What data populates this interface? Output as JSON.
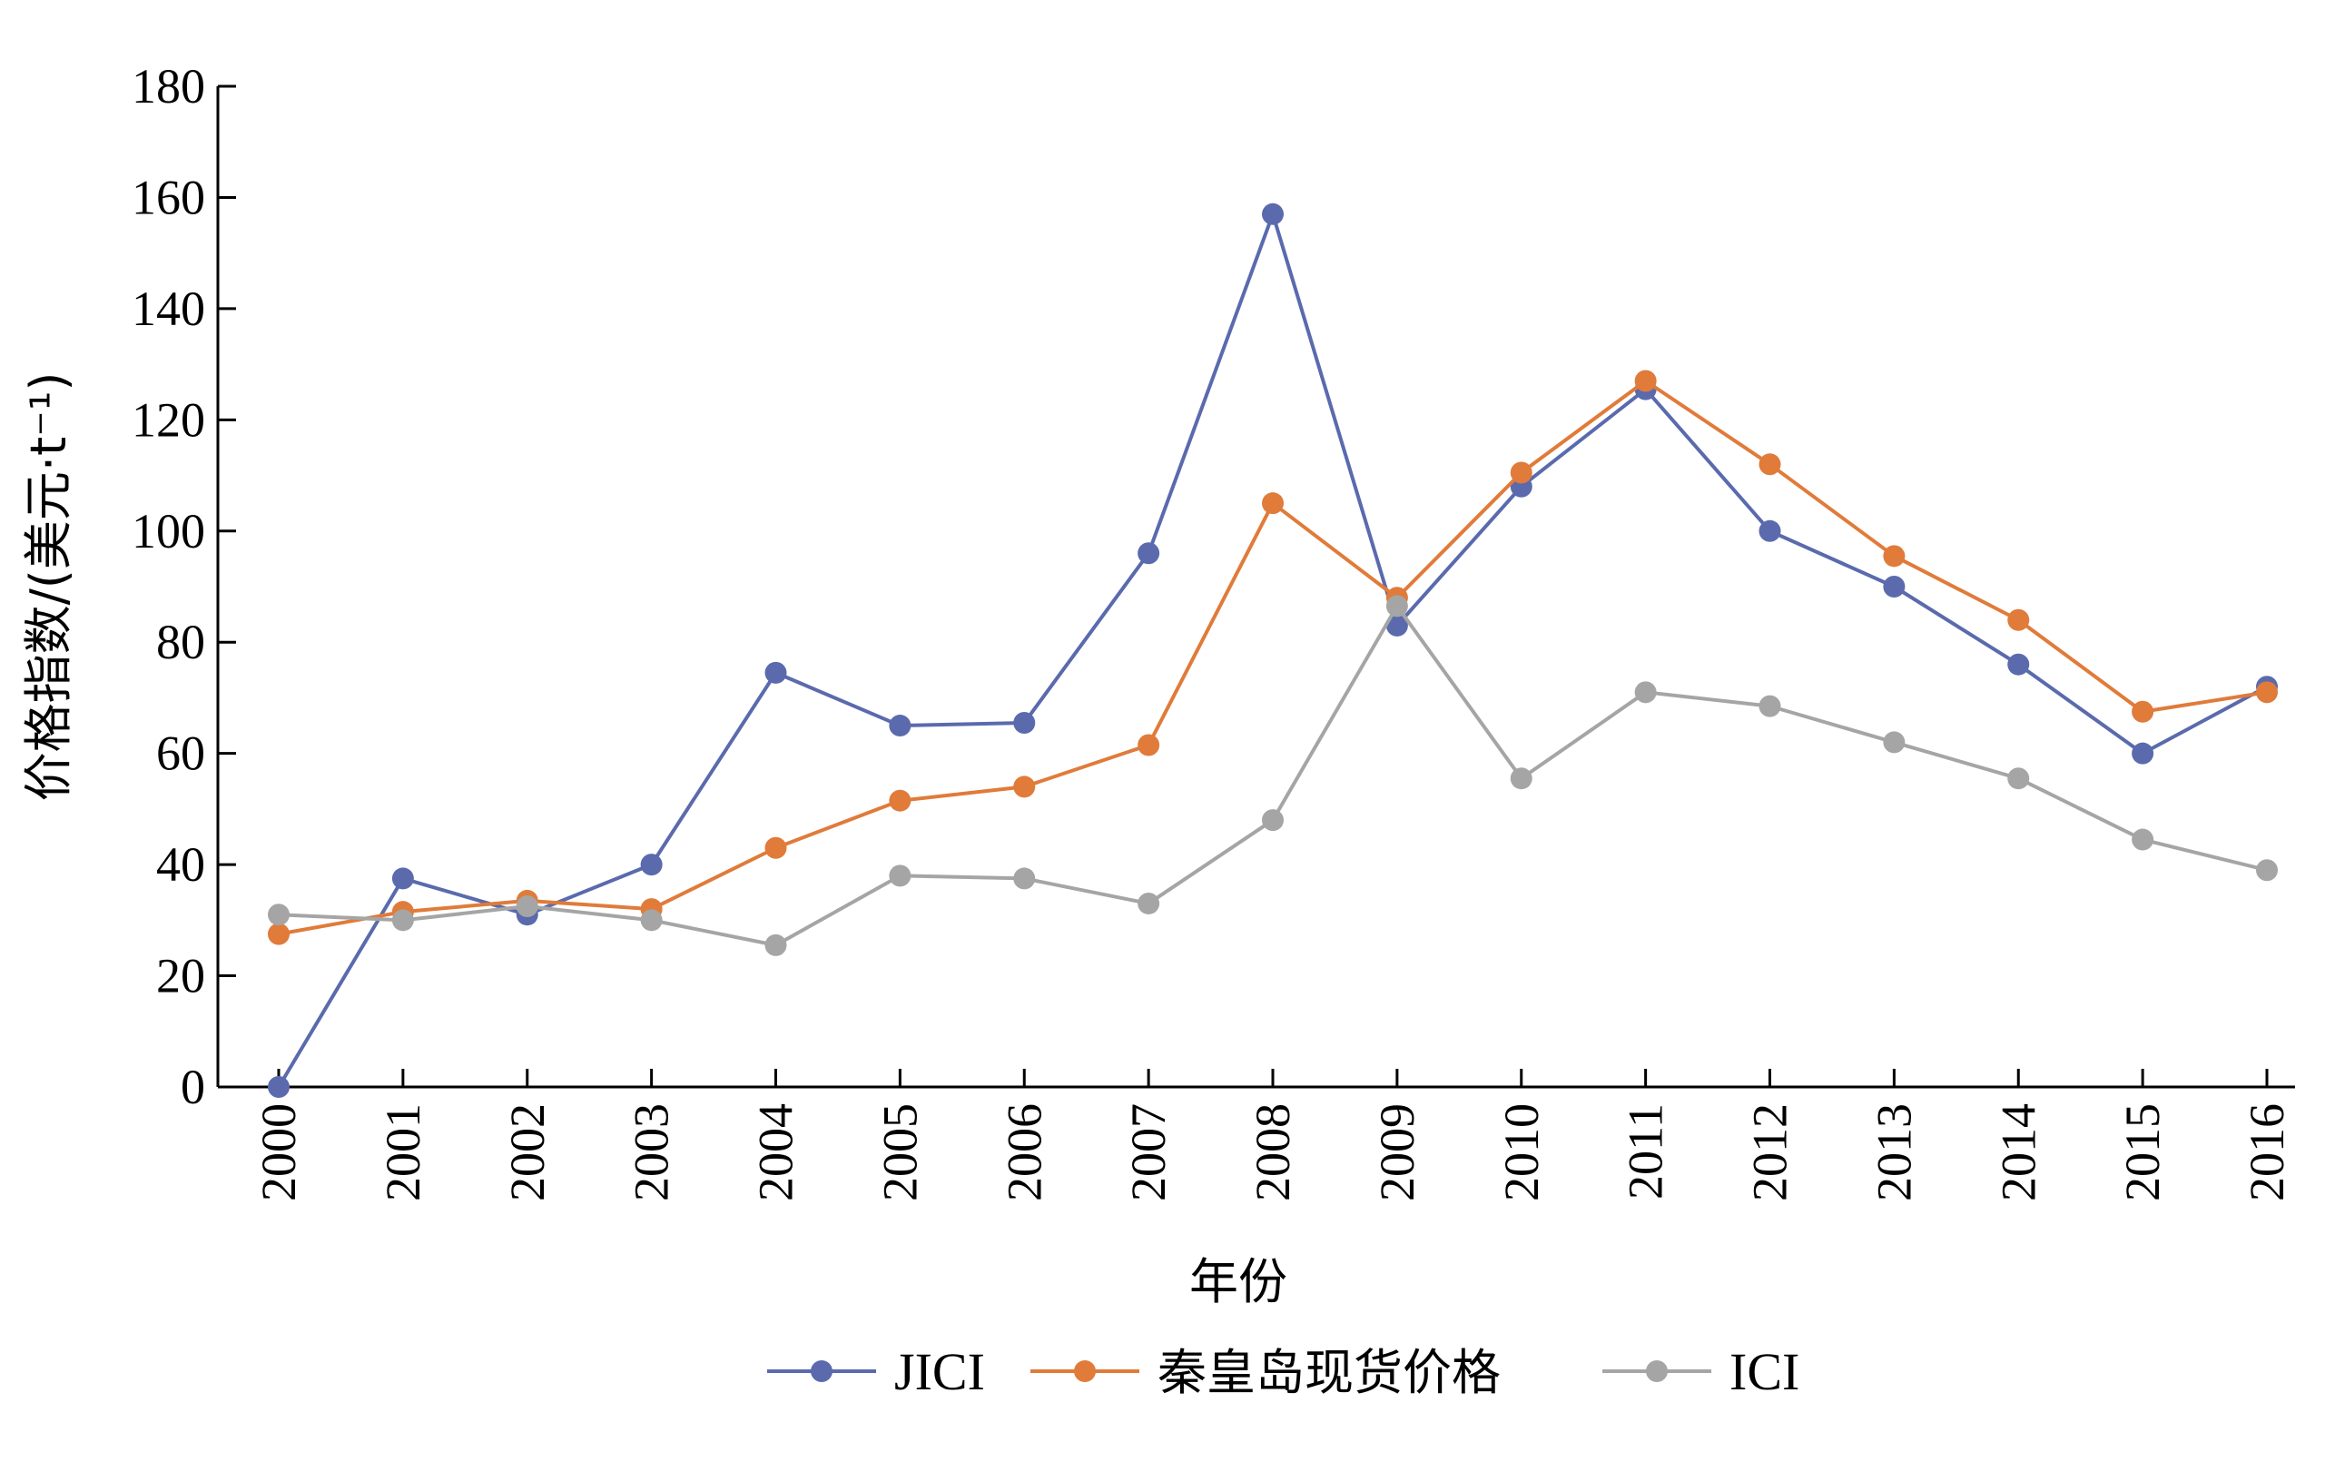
{
  "chart_data": {
    "type": "line",
    "title": "",
    "xlabel": "年份",
    "ylabel": "价格指数/(美元·t⁻¹)",
    "ylim": [
      0,
      180
    ],
    "yticks": [
      "0",
      "20",
      "40",
      "60",
      "80",
      "100",
      "120",
      "140",
      "160",
      "180"
    ],
    "x": [
      "2000",
      "2001",
      "2002",
      "2003",
      "2004",
      "2005",
      "2006",
      "2007",
      "2008",
      "2009",
      "2010",
      "2011",
      "2012",
      "2013",
      "2014",
      "2015",
      "2016"
    ],
    "grid": false,
    "legend_position": "bottom",
    "series": [
      {
        "name": "JICI",
        "color": "#5a6aad",
        "values": [
          0,
          37.5,
          31,
          40,
          74.5,
          65,
          65.5,
          96,
          157,
          83,
          108,
          125.5,
          100,
          90,
          76,
          60,
          72
        ]
      },
      {
        "name": "秦皇岛现货价格",
        "color": "#e07b3a",
        "values": [
          27.5,
          31.5,
          33.5,
          32,
          43,
          51.5,
          54,
          61.5,
          105,
          88,
          110.5,
          127,
          112,
          95.5,
          84,
          67.5,
          71
        ]
      },
      {
        "name": "ICI",
        "color": "#a5a5a5",
        "values": [
          31,
          30,
          32.5,
          30,
          25.5,
          38,
          37.5,
          33,
          48,
          86.5,
          55.5,
          71,
          68.5,
          62,
          55.5,
          44.5,
          39
        ]
      }
    ]
  }
}
